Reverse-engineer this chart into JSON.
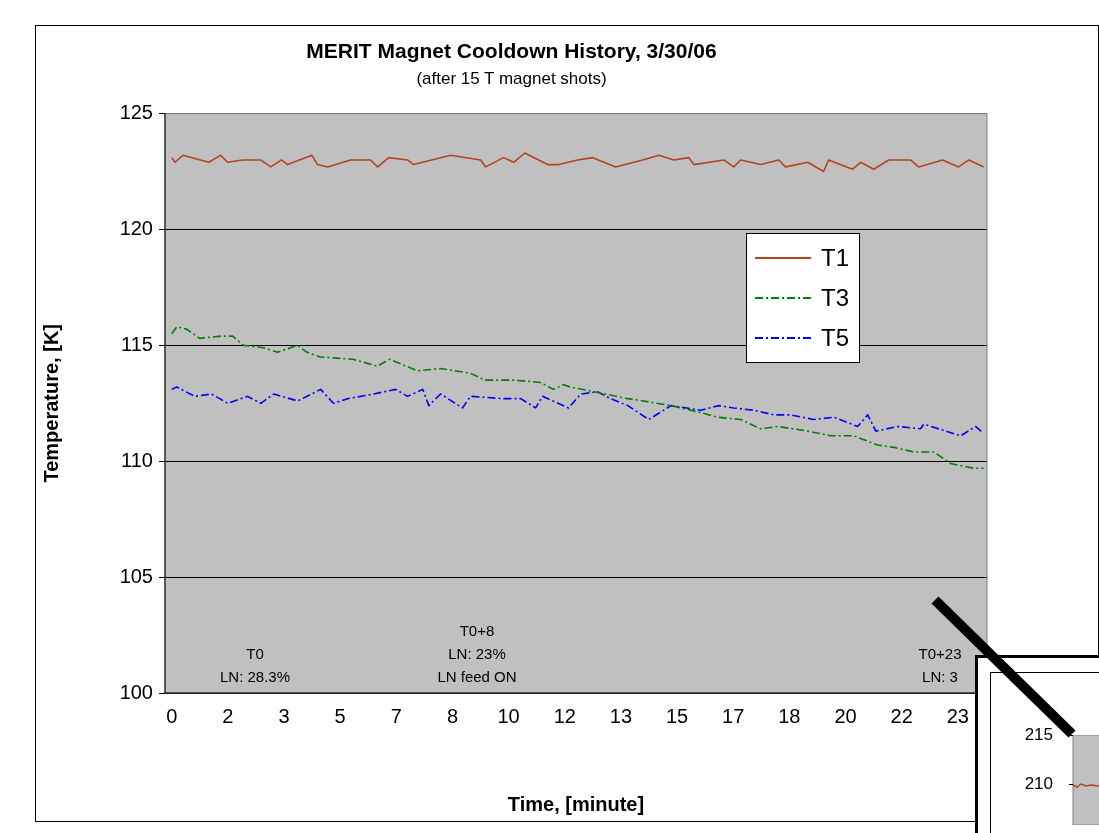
{
  "chart_data": [
    {
      "type": "line",
      "title": "MERIT Magnet Cooldown History, 3/30/06",
      "subtitle": "(after 15 T magnet shots)",
      "xlabel": "Time, [minute]",
      "ylabel": "Temperature, [K]",
      "xlim": [
        -0.2,
        24.2
      ],
      "xticks": [
        0,
        {
          "value": 1.667,
          "label": "2"
        },
        {
          "value": 3.333,
          "label": "3"
        },
        5,
        {
          "value": 6.667,
          "label": "7"
        },
        {
          "value": 8.333,
          "label": "8"
        },
        10,
        {
          "value": 11.667,
          "label": "12"
        },
        {
          "value": 13.333,
          "label": "13"
        },
        15,
        {
          "value": 16.667,
          "label": "17"
        },
        {
          "value": 18.333,
          "label": "18"
        },
        20,
        {
          "value": 21.667,
          "label": "22"
        },
        {
          "value": 23.333,
          "label": "23"
        }
      ],
      "ylim": [
        100,
        125
      ],
      "yticks": [
        100,
        105,
        110,
        115,
        120,
        125
      ],
      "grid": "y",
      "legend": "right",
      "marker": "none",
      "series": [
        {
          "name": "T1",
          "color": "#b5441c",
          "line_style": "solid",
          "x": [
            0,
            0.1,
            0.33,
            1.1,
            1.45,
            1.66,
            2.1,
            2.64,
            2.94,
            3.26,
            3.44,
            4.16,
            4.33,
            4.63,
            5.31,
            5.9,
            6.11,
            6.44,
            7.0,
            7.18,
            8.28,
            9.17,
            9.32,
            9.85,
            10.15,
            10.48,
            11.16,
            11.49,
            12.05,
            12.5,
            13.18,
            13.98,
            14.46,
            14.9,
            15.35,
            15.5,
            16.39,
            16.68,
            16.89,
            17.48,
            18.02,
            18.22,
            18.88,
            19.35,
            19.5,
            20.21,
            20.45,
            20.84,
            21.28,
            21.93,
            22.17,
            22.88,
            23.36,
            23.66,
            24.1
          ],
          "values": [
            123.1,
            122.9,
            123.2,
            122.9,
            123.2,
            122.9,
            123.0,
            123.0,
            122.7,
            123.0,
            122.8,
            123.2,
            122.8,
            122.7,
            123.0,
            123.0,
            122.7,
            123.1,
            123.0,
            122.8,
            123.2,
            123.0,
            122.7,
            123.1,
            122.9,
            123.3,
            122.8,
            122.8,
            123.0,
            123.1,
            122.7,
            123.0,
            123.2,
            123.0,
            123.1,
            122.8,
            123.0,
            122.7,
            123.0,
            122.8,
            123.0,
            122.7,
            122.9,
            122.5,
            123.0,
            122.6,
            122.9,
            122.6,
            123.0,
            123.0,
            122.7,
            123.0,
            122.7,
            123.0,
            122.7
          ]
        },
        {
          "name": "T3",
          "color": "#008000",
          "line_style": "dashed",
          "x": [
            0,
            0.15,
            0.44,
            0.83,
            1.45,
            1.81,
            2.13,
            2.73,
            3.14,
            3.72,
            4.02,
            4.41,
            5.38,
            6.1,
            6.47,
            7.3,
            7.97,
            8.86,
            9.3,
            10.15,
            10.95,
            11.33,
            11.63,
            11.84,
            12.53,
            13.54,
            14.0,
            14.82,
            15.7,
            16.2,
            16.89,
            17.48,
            17.99,
            18.88,
            19.56,
            20.24,
            20.95,
            21.43,
            22.02,
            22.62,
            23.12,
            23.8,
            24.1
          ],
          "values": [
            115.5,
            115.8,
            115.7,
            115.3,
            115.4,
            115.4,
            115.0,
            114.9,
            114.7,
            115.0,
            114.7,
            114.5,
            114.4,
            114.1,
            114.4,
            113.9,
            114.0,
            113.8,
            113.5,
            113.5,
            113.4,
            113.1,
            113.3,
            113.2,
            113.0,
            112.7,
            112.6,
            112.4,
            112.1,
            111.9,
            111.8,
            111.4,
            111.5,
            111.3,
            111.1,
            111.1,
            110.7,
            110.6,
            110.4,
            110.4,
            109.9,
            109.7,
            109.7
          ]
        },
        {
          "name": "T5",
          "color": "#0000ff",
          "line_style": "dashed",
          "x": [
            0,
            0.15,
            0.68,
            1.18,
            1.66,
            2.25,
            2.64,
            3.03,
            3.74,
            4.42,
            4.8,
            5.22,
            5.99,
            6.65,
            7.0,
            7.45,
            7.63,
            7.98,
            8.63,
            8.87,
            9.85,
            10.36,
            10.8,
            11.01,
            11.78,
            12.14,
            12.64,
            13.03,
            13.54,
            14.16,
            14.82,
            15.7,
            16.24,
            16.68,
            17.28,
            17.87,
            18.37,
            19.06,
            19.65,
            20.36,
            20.66,
            20.9,
            21.55,
            22.23,
            22.32,
            23.42,
            23.86,
            24.1
          ],
          "values": [
            113.1,
            113.2,
            112.8,
            112.9,
            112.5,
            112.8,
            112.5,
            112.9,
            112.6,
            113.1,
            112.5,
            112.7,
            112.9,
            113.1,
            112.8,
            113.1,
            112.4,
            112.9,
            112.3,
            112.8,
            112.7,
            112.7,
            112.3,
            112.8,
            112.3,
            112.9,
            113.0,
            112.7,
            112.4,
            111.8,
            112.4,
            112.2,
            112.4,
            112.3,
            112.2,
            112.0,
            112.0,
            111.8,
            111.9,
            111.5,
            112.0,
            111.3,
            111.5,
            111.4,
            111.6,
            111.1,
            111.5,
            111.2
          ]
        }
      ],
      "annotations": [
        "T0\nLN: 28.3%",
        "T0+8\nLN: 23%\nLN feed ON",
        "T0+23\nLN: 3"
      ]
    },
    {
      "type": "other",
      "annotations": [
        "215",
        "210"
      ]
    }
  ]
}
